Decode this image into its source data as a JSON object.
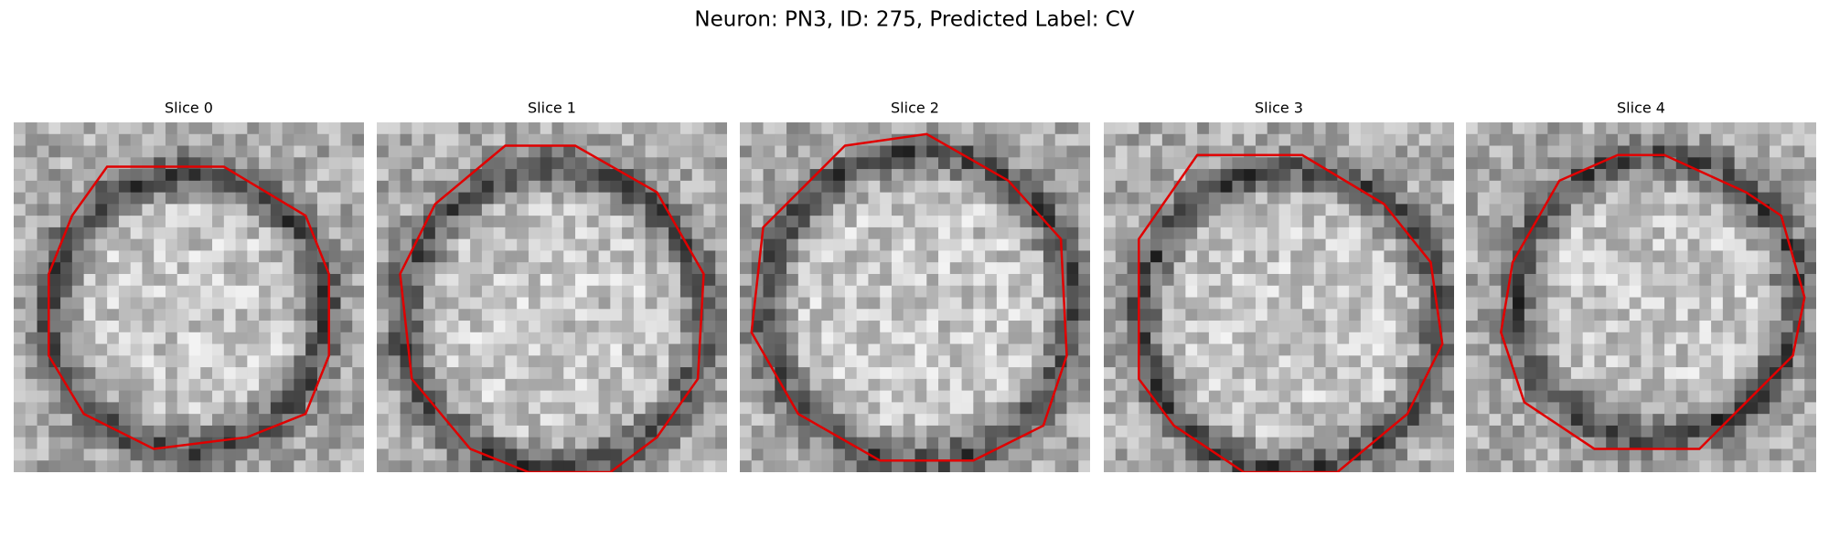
{
  "figure": {
    "title": "Neuron: PN3, ID: 275, Predicted Label: CV",
    "panels": [
      {
        "title": "Slice 0"
      },
      {
        "title": "Slice 1"
      },
      {
        "title": "Slice 2"
      },
      {
        "title": "Slice 3"
      },
      {
        "title": "Slice 4"
      }
    ]
  }
}
